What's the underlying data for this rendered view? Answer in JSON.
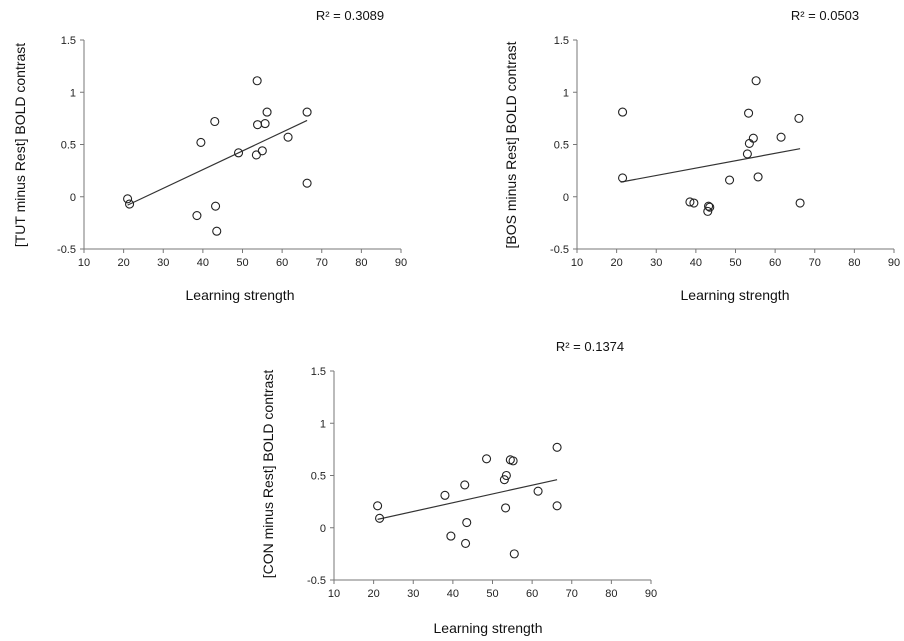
{
  "chart_data": [
    {
      "type": "scatter",
      "xlabel": "Learning strength",
      "ylabel": "[TUT minus Rest] BOLD contrast",
      "annotation": "R² = 0.3089",
      "xlim": [
        10,
        90
      ],
      "ylim": [
        -0.5,
        1.5
      ],
      "xticks": [
        "10",
        "20",
        "30",
        "40",
        "50",
        "60",
        "70",
        "80",
        "90"
      ],
      "yticks": [
        "-0.5",
        "0",
        "0.5",
        "1",
        "1.5"
      ],
      "points": [
        [
          21,
          -0.02
        ],
        [
          21.5,
          -0.07
        ],
        [
          38.5,
          -0.18
        ],
        [
          39.5,
          0.52
        ],
        [
          43,
          0.72
        ],
        [
          43.2,
          -0.09
        ],
        [
          43.5,
          -0.33
        ],
        [
          49,
          0.42
        ],
        [
          53.5,
          0.4
        ],
        [
          53.8,
          0.69
        ],
        [
          53.7,
          1.11
        ],
        [
          55,
          0.44
        ],
        [
          55.7,
          0.7
        ],
        [
          56.2,
          0.81
        ],
        [
          61.5,
          0.57
        ],
        [
          66.3,
          0.81
        ],
        [
          66.3,
          0.13
        ]
      ],
      "trendline": [
        [
          21,
          -0.08
        ],
        [
          66.3,
          0.73
        ]
      ],
      "grid": false
    },
    {
      "type": "scatter",
      "xlabel": "Learning strength",
      "ylabel": "[BOS minus Rest] BOLD contrast",
      "annotation": "R² = 0.0503",
      "xlim": [
        10,
        90
      ],
      "ylim": [
        -0.5,
        1.5
      ],
      "xticks": [
        "10",
        "20",
        "30",
        "40",
        "50",
        "60",
        "70",
        "80",
        "90"
      ],
      "yticks": [
        "-0.5",
        "0",
        "0.5",
        "1",
        "1.5"
      ],
      "points": [
        [
          21.5,
          0.81
        ],
        [
          21.5,
          0.18
        ],
        [
          38.5,
          -0.05
        ],
        [
          39.5,
          -0.06
        ],
        [
          43,
          -0.14
        ],
        [
          43.2,
          -0.09
        ],
        [
          43.5,
          -0.1
        ],
        [
          48.5,
          0.16
        ],
        [
          53,
          0.41
        ],
        [
          53.3,
          0.8
        ],
        [
          53.5,
          0.51
        ],
        [
          54.5,
          0.56
        ],
        [
          55.2,
          1.11
        ],
        [
          55.7,
          0.19
        ],
        [
          61.5,
          0.57
        ],
        [
          66,
          0.75
        ],
        [
          66.3,
          -0.06
        ]
      ],
      "trendline": [
        [
          21,
          0.14
        ],
        [
          66.3,
          0.46
        ]
      ],
      "grid": false
    },
    {
      "type": "scatter",
      "xlabel": "Learning strength",
      "ylabel": "[CON minus Rest] BOLD contrast",
      "annotation": "R² = 0.1374",
      "xlim": [
        10,
        90
      ],
      "ylim": [
        -0.5,
        1.5
      ],
      "xticks": [
        "10",
        "20",
        "30",
        "40",
        "50",
        "60",
        "70",
        "80",
        "90"
      ],
      "yticks": [
        "-0.5",
        "0",
        "0.5",
        "1",
        "1.5"
      ],
      "points": [
        [
          21,
          0.21
        ],
        [
          21.5,
          0.09
        ],
        [
          38,
          0.31
        ],
        [
          39.5,
          -0.08
        ],
        [
          43,
          0.41
        ],
        [
          43.2,
          -0.15
        ],
        [
          43.5,
          0.05
        ],
        [
          48.5,
          0.66
        ],
        [
          53,
          0.46
        ],
        [
          53.3,
          0.19
        ],
        [
          53.5,
          0.5
        ],
        [
          54.5,
          0.65
        ],
        [
          55.2,
          0.64
        ],
        [
          55.5,
          -0.25
        ],
        [
          61.5,
          0.35
        ],
        [
          66.3,
          0.21
        ],
        [
          66.3,
          0.77
        ]
      ],
      "trendline": [
        [
          21,
          0.08
        ],
        [
          66.3,
          0.46
        ]
      ],
      "grid": false
    }
  ]
}
